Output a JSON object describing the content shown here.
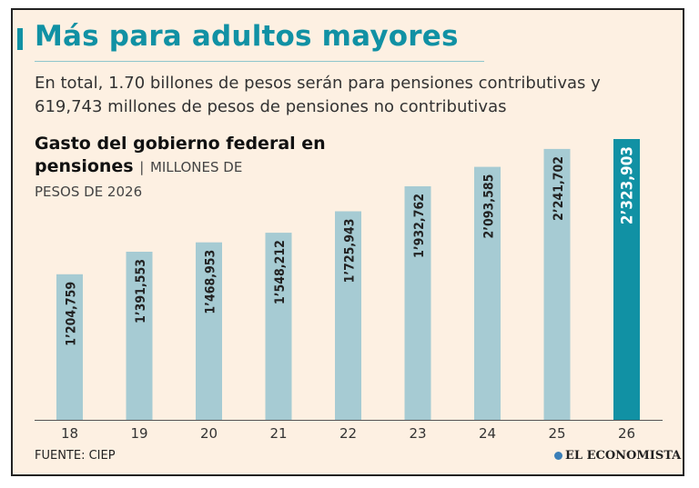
{
  "title": "Más para adultos mayores",
  "subtitle": "En total, 1.70 billones de pesos serán para pensiones contributivas y 619,743 millones de pesos de pensiones no contributivas",
  "chart_heading": "Gasto del gobierno federal en pensiones",
  "unit_separator": "|",
  "unit_label_line1": "MILLONES DE",
  "unit_label_line2": "PESOS DE 2026",
  "source": "FUENTE: CIEP",
  "brand": "EL ECONOMISTA",
  "colors": {
    "bar": "#a6cbd3",
    "highlight": "#1191a4",
    "text": "#222222",
    "accent": "#1191a4"
  },
  "chart_data": {
    "type": "bar",
    "title": "Gasto del gobierno federal en pensiones",
    "ylabel": "Millones de pesos de 2026",
    "xlabel": "",
    "categories": [
      "18",
      "19",
      "20",
      "21",
      "22",
      "23",
      "24",
      "25",
      "26"
    ],
    "values": [
      1204759,
      1391553,
      1468953,
      1548212,
      1725943,
      1932762,
      2093585,
      2241702,
      2323903
    ],
    "data_labels": [
      "1’204,759",
      "1’391,553",
      "1’468,953",
      "1’548,212",
      "1’725,943",
      "1’932,762",
      "2’093,585",
      "2’241,702",
      "2’323,903"
    ],
    "highlight_category": "26",
    "ylim": [
      0,
      2323903
    ],
    "grid": false
  }
}
